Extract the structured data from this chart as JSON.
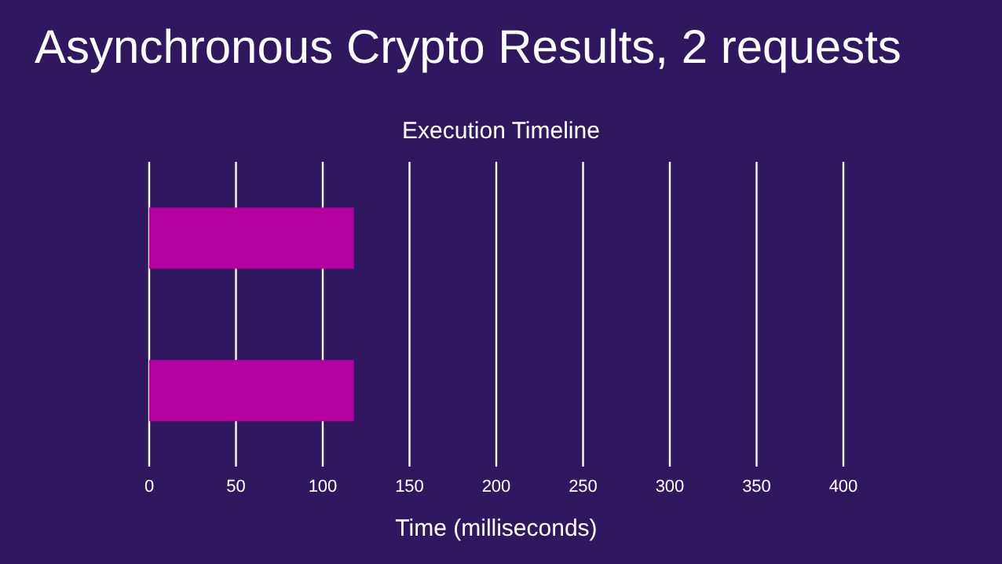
{
  "chart_data": {
    "type": "bar",
    "orientation": "horizontal",
    "title": "Asynchronous Crypto Results, 2 requests",
    "subtitle": "Execution Timeline",
    "xlabel": "Time (milliseconds)",
    "categories": [
      null,
      null
    ],
    "values": [
      118,
      118
    ],
    "color": "#b3009f",
    "xlim": [
      0,
      400
    ],
    "xticks": [
      0,
      50,
      100,
      150,
      200,
      250,
      300,
      350,
      400
    ],
    "grid": "x"
  }
}
